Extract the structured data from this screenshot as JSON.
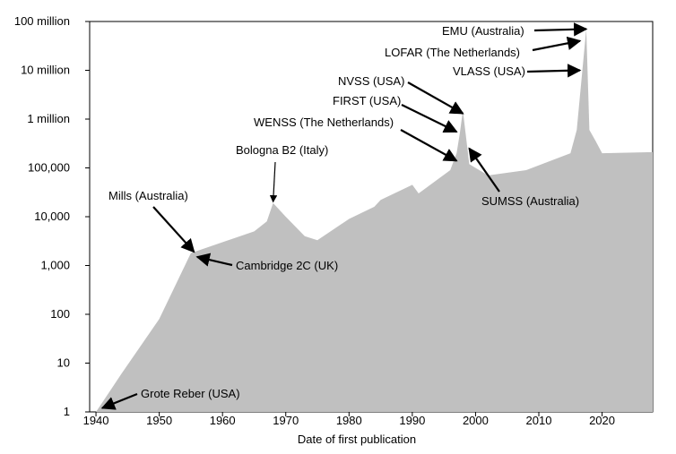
{
  "chart_data": {
    "type": "area",
    "title": "",
    "xlabel": "Date of first publication",
    "ylabel": "",
    "yscale": "log",
    "xlim": [
      1939,
      2028
    ],
    "ylim": [
      1,
      100000000
    ],
    "grid": false,
    "fill_color": "#c0c0c0",
    "x_ticks": [
      1940,
      1950,
      1960,
      1970,
      1980,
      1990,
      2000,
      2010,
      2020
    ],
    "x_tick_labels": [
      "1940",
      "1950",
      "1960",
      "1970",
      "1980",
      "1990",
      "2000",
      "2010",
      "2020"
    ],
    "y_ticks": [
      1,
      10,
      100,
      1000,
      10000,
      100000,
      1000000,
      10000000,
      100000000
    ],
    "y_tick_labels": [
      "1",
      "10",
      "100",
      "1,000",
      "10,000",
      "100,000",
      "1 million",
      "10 million",
      "100 million"
    ],
    "series": [
      {
        "x": [
          1939.5,
          1940,
          1944,
          1950,
          1955,
          1965,
          1967,
          1968,
          1970,
          1973,
          1975,
          1980,
          1984,
          1985,
          1990,
          1991,
          1996,
          1997,
          1997.5,
          1998,
          1999,
          2000,
          2002,
          2008,
          2015,
          2016,
          2017.5,
          2018,
          2019,
          2020,
          2028
        ],
        "y": [
          1,
          1,
          6,
          80,
          1800,
          5000,
          8000,
          19000,
          10000,
          4000,
          3300,
          9000,
          16000,
          22000,
          45000,
          30000,
          90000,
          200000,
          500000,
          1500000,
          120000,
          100000,
          70000,
          90000,
          200000,
          600000,
          70000000,
          600000,
          350000,
          200000,
          210000
        ]
      }
    ],
    "annotations": [
      {
        "label": "Grote Reber (USA)",
        "x": 1941,
        "y": 1.2
      },
      {
        "label": "Mills (Australia)",
        "x": 1955.5,
        "y": 1900
      },
      {
        "label": "Cambridge 2C (UK)",
        "x": 1956,
        "y": 1500
      },
      {
        "label": "Bologna B2 (Italy)",
        "x": 1968,
        "y": 20000
      },
      {
        "label": "WENSS (The Netherlands)",
        "x": 1997,
        "y": 140000
      },
      {
        "label": "FIRST (USA)",
        "x": 1997,
        "y": 550000
      },
      {
        "label": "NVSS (USA)",
        "x": 1998,
        "y": 1300000
      },
      {
        "label": "SUMSS (Australia)",
        "x": 1999,
        "y": 250000
      },
      {
        "label": "VLASS (USA)",
        "x": 2016.5,
        "y": 10000000
      },
      {
        "label": "LOFAR (The Netherlands)",
        "x": 2016.5,
        "y": 40000000
      },
      {
        "label": "EMU (Australia)",
        "x": 2017.5,
        "y": 70000000
      }
    ]
  }
}
